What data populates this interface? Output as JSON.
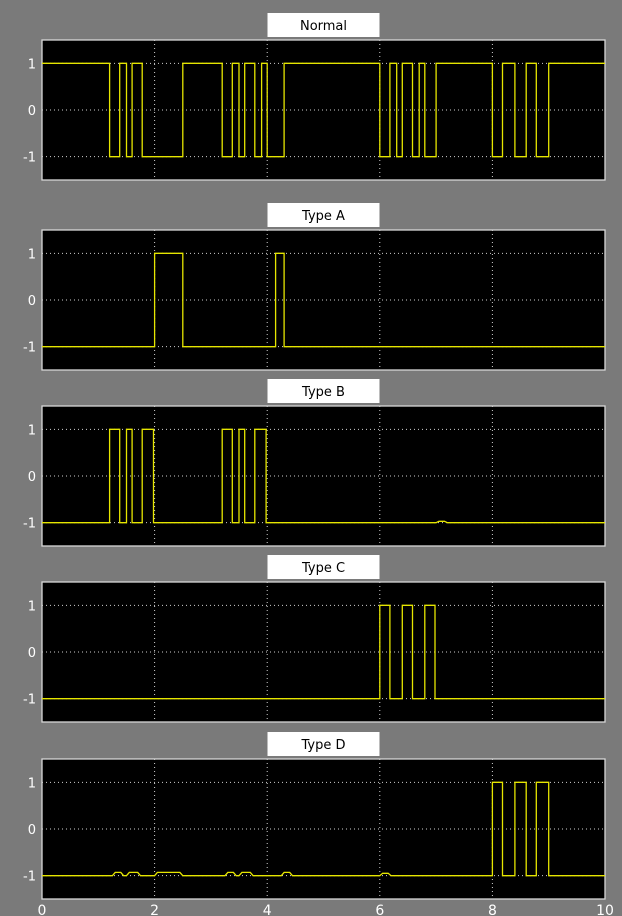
{
  "chart_data": [
    {
      "type": "line",
      "title": "Normal",
      "xlim": [
        0,
        10
      ],
      "ylim": [
        -1.5,
        1.5
      ],
      "yticks": [
        "1",
        "0",
        "-1"
      ],
      "grid": true,
      "series": [
        {
          "values": [
            [
              0,
              1
            ],
            [
              1.2,
              1
            ],
            [
              1.2,
              -1
            ],
            [
              1.38,
              -1
            ],
            [
              1.38,
              1
            ],
            [
              1.5,
              1
            ],
            [
              1.5,
              -1
            ],
            [
              1.6,
              -1
            ],
            [
              1.6,
              1
            ],
            [
              1.78,
              1
            ],
            [
              1.78,
              -1
            ],
            [
              2.5,
              -1
            ],
            [
              2.5,
              1
            ],
            [
              3.2,
              1
            ],
            [
              3.2,
              -1
            ],
            [
              3.38,
              -1
            ],
            [
              3.38,
              1
            ],
            [
              3.5,
              1
            ],
            [
              3.5,
              -1
            ],
            [
              3.6,
              -1
            ],
            [
              3.6,
              1
            ],
            [
              3.78,
              1
            ],
            [
              3.78,
              -1
            ],
            [
              3.9,
              -1
            ],
            [
              3.9,
              1
            ],
            [
              4.0,
              1
            ],
            [
              4.0,
              -1
            ],
            [
              4.3,
              -1
            ],
            [
              4.3,
              1
            ],
            [
              6.0,
              1
            ],
            [
              6.0,
              -1
            ],
            [
              6.18,
              -1
            ],
            [
              6.18,
              1
            ],
            [
              6.3,
              1
            ],
            [
              6.3,
              -1
            ],
            [
              6.4,
              -1
            ],
            [
              6.4,
              1
            ],
            [
              6.58,
              1
            ],
            [
              6.58,
              -1
            ],
            [
              6.7,
              -1
            ],
            [
              6.7,
              1
            ],
            [
              6.8,
              1
            ],
            [
              6.8,
              -1
            ],
            [
              7.0,
              -1
            ],
            [
              7.0,
              1
            ],
            [
              8.0,
              1
            ],
            [
              8.0,
              -1
            ],
            [
              8.18,
              -1
            ],
            [
              8.18,
              1
            ],
            [
              8.4,
              1
            ],
            [
              8.4,
              -1
            ],
            [
              8.6,
              -1
            ],
            [
              8.6,
              1
            ],
            [
              8.78,
              1
            ],
            [
              8.78,
              -1
            ],
            [
              9.0,
              -1
            ],
            [
              9.0,
              1
            ],
            [
              10,
              1
            ]
          ]
        }
      ]
    },
    {
      "type": "line",
      "title": "Type A",
      "xlim": [
        0,
        10
      ],
      "ylim": [
        -1.5,
        1.5
      ],
      "yticks": [
        "1",
        "0",
        "-1"
      ],
      "grid": true,
      "series": [
        {
          "values": [
            [
              0,
              -1
            ],
            [
              2.0,
              -1
            ],
            [
              2.0,
              1
            ],
            [
              2.5,
              1
            ],
            [
              2.5,
              -1
            ],
            [
              4.15,
              -1
            ],
            [
              4.15,
              1
            ],
            [
              4.3,
              1
            ],
            [
              4.3,
              -1
            ],
            [
              10,
              -1
            ]
          ]
        }
      ]
    },
    {
      "type": "line",
      "title": "Type B",
      "xlim": [
        0,
        10
      ],
      "ylim": [
        -1.5,
        1.5
      ],
      "yticks": [
        "1",
        "0",
        "-1"
      ],
      "grid": true,
      "series": [
        {
          "values": [
            [
              0,
              -1
            ],
            [
              1.2,
              -1
            ],
            [
              1.2,
              1
            ],
            [
              1.38,
              1
            ],
            [
              1.38,
              -1
            ],
            [
              1.5,
              -1
            ],
            [
              1.5,
              1
            ],
            [
              1.6,
              1
            ],
            [
              1.6,
              -1
            ],
            [
              1.78,
              -1
            ],
            [
              1.78,
              1
            ],
            [
              1.98,
              1
            ],
            [
              1.98,
              -1
            ],
            [
              3.2,
              -1
            ],
            [
              3.2,
              1
            ],
            [
              3.38,
              1
            ],
            [
              3.38,
              -1
            ],
            [
              3.5,
              -1
            ],
            [
              3.5,
              1
            ],
            [
              3.6,
              1
            ],
            [
              3.6,
              -1
            ],
            [
              3.78,
              -1
            ],
            [
              3.78,
              1
            ],
            [
              3.98,
              1
            ],
            [
              3.98,
              -1
            ],
            [
              7.0,
              -1
            ],
            [
              7.05,
              -0.97
            ],
            [
              7.15,
              -0.97
            ],
            [
              7.2,
              -1
            ],
            [
              10,
              -1
            ]
          ]
        }
      ]
    },
    {
      "type": "line",
      "title": "Type C",
      "xlim": [
        0,
        10
      ],
      "ylim": [
        -1.5,
        1.5
      ],
      "yticks": [
        "1",
        "0",
        "-1"
      ],
      "grid": true,
      "series": [
        {
          "values": [
            [
              0,
              -1
            ],
            [
              6.0,
              -1
            ],
            [
              6.0,
              1
            ],
            [
              6.18,
              1
            ],
            [
              6.18,
              -1
            ],
            [
              6.4,
              -1
            ],
            [
              6.4,
              1
            ],
            [
              6.58,
              1
            ],
            [
              6.58,
              -1
            ],
            [
              6.8,
              -1
            ],
            [
              6.8,
              1
            ],
            [
              6.98,
              1
            ],
            [
              6.98,
              -1
            ],
            [
              10,
              -1
            ]
          ]
        }
      ]
    },
    {
      "type": "line",
      "title": "Type D",
      "xlim": [
        0,
        10
      ],
      "ylim": [
        -1.5,
        1.5
      ],
      "yticks": [
        "1",
        "0",
        "-1"
      ],
      "xticks": [
        "0",
        "2",
        "4",
        "6",
        "8",
        "10"
      ],
      "grid": true,
      "series": [
        {
          "values": [
            [
              0,
              -1
            ],
            [
              1.25,
              -1
            ],
            [
              1.3,
              -0.93
            ],
            [
              1.4,
              -0.93
            ],
            [
              1.45,
              -1
            ],
            [
              1.5,
              -1
            ],
            [
              1.55,
              -0.93
            ],
            [
              1.7,
              -0.93
            ],
            [
              1.75,
              -1
            ],
            [
              2.0,
              -1
            ],
            [
              2.05,
              -0.93
            ],
            [
              2.45,
              -0.93
            ],
            [
              2.5,
              -1
            ],
            [
              3.25,
              -1
            ],
            [
              3.3,
              -0.93
            ],
            [
              3.4,
              -0.93
            ],
            [
              3.45,
              -1
            ],
            [
              3.5,
              -1
            ],
            [
              3.55,
              -0.93
            ],
            [
              3.7,
              -0.93
            ],
            [
              3.75,
              -1
            ],
            [
              4.25,
              -1
            ],
            [
              4.3,
              -0.93
            ],
            [
              4.4,
              -0.93
            ],
            [
              4.45,
              -1
            ],
            [
              6.0,
              -1
            ],
            [
              6.05,
              -0.95
            ],
            [
              6.15,
              -0.95
            ],
            [
              6.2,
              -1
            ],
            [
              8.0,
              -1
            ],
            [
              8.0,
              1
            ],
            [
              8.18,
              1
            ],
            [
              8.18,
              -1
            ],
            [
              8.4,
              -1
            ],
            [
              8.4,
              1
            ],
            [
              8.6,
              1
            ],
            [
              8.6,
              -1
            ],
            [
              8.78,
              -1
            ],
            [
              8.78,
              1
            ],
            [
              9.0,
              1
            ],
            [
              9.0,
              -1
            ],
            [
              10,
              -1
            ]
          ]
        }
      ]
    }
  ],
  "colors": {
    "background": "#7a7a7a",
    "axes": "#000000",
    "trace": "#e6e600",
    "grid": "#d0d0d0",
    "text": "#ffffff"
  }
}
